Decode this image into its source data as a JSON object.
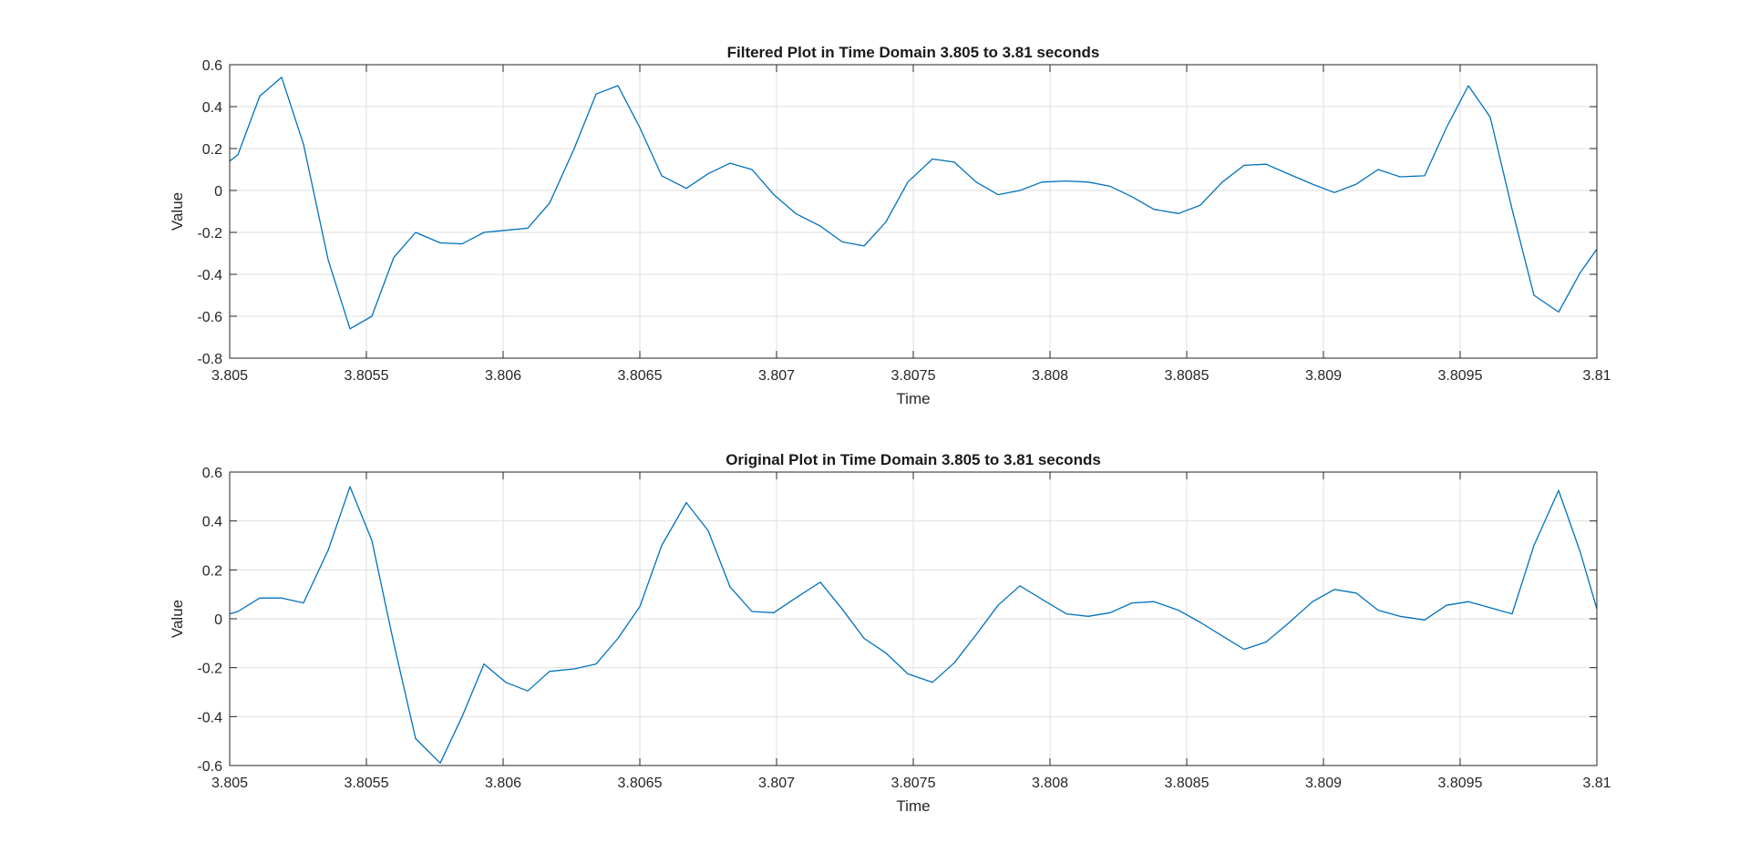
{
  "chart_data": [
    {
      "type": "line",
      "title": "Filtered Plot in Time Domain 3.805 to 3.81 seconds",
      "xlabel": "Time",
      "ylabel": "Value",
      "xlim": [
        3.805,
        3.81
      ],
      "ylim": [
        -0.8,
        0.6
      ],
      "xticks": [
        3.805,
        3.8055,
        3.806,
        3.8065,
        3.807,
        3.8075,
        3.808,
        3.8085,
        3.809,
        3.8095,
        3.81
      ],
      "xtick_labels": [
        "3.805",
        "3.8055",
        "3.806",
        "3.8065",
        "3.807",
        "3.8075",
        "3.808",
        "3.8085",
        "3.809",
        "3.8095",
        "3.81"
      ],
      "yticks": [
        -0.8,
        -0.6,
        -0.4,
        -0.2,
        0,
        0.2,
        0.4,
        0.6
      ],
      "ytick_labels": [
        "-0.8",
        "-0.6",
        "-0.4",
        "-0.2",
        "0",
        "0.2",
        "0.4",
        "0.6"
      ],
      "grid": true,
      "color": "#0072BD",
      "x": [
        3.805,
        3.80503,
        3.80511,
        3.80519,
        3.80527,
        3.80536,
        3.80544,
        3.80552,
        3.8056,
        3.80568,
        3.80577,
        3.80585,
        3.80593,
        3.80601,
        3.80609,
        3.80617,
        3.80626,
        3.80634,
        3.80642,
        3.8065,
        3.80658,
        3.80667,
        3.80675,
        3.80683,
        3.80691,
        3.80699,
        3.80707,
        3.80716,
        3.80724,
        3.80732,
        3.8074,
        3.80748,
        3.80757,
        3.80765,
        3.80773,
        3.80781,
        3.80789,
        3.80797,
        3.80806,
        3.80814,
        3.80822,
        3.8083,
        3.80838,
        3.80847,
        3.80855,
        3.80863,
        3.80871,
        3.80879,
        3.80887,
        3.80896,
        3.80904,
        3.80912,
        3.8092,
        3.80928,
        3.80937,
        3.80945,
        3.80953,
        3.80961,
        3.80969,
        3.80977,
        3.80986,
        3.80994,
        3.81
      ],
      "y": [
        0.14,
        0.17,
        0.45,
        0.54,
        0.22,
        -0.33,
        -0.66,
        -0.6,
        -0.32,
        -0.2,
        -0.25,
        -0.255,
        -0.2,
        -0.19,
        -0.18,
        -0.06,
        0.2,
        0.46,
        0.5,
        0.3,
        0.07,
        0.01,
        0.08,
        0.13,
        0.1,
        -0.02,
        -0.11,
        -0.17,
        -0.245,
        -0.265,
        -0.15,
        0.04,
        0.15,
        0.135,
        0.04,
        -0.02,
        0.0,
        0.04,
        0.045,
        0.04,
        0.02,
        -0.03,
        -0.09,
        -0.11,
        -0.07,
        0.04,
        0.12,
        0.125,
        0.08,
        0.03,
        -0.01,
        0.03,
        0.1,
        0.065,
        0.07,
        0.3,
        0.5,
        0.35,
        -0.09,
        -0.5,
        -0.58,
        -0.39,
        -0.28
      ]
    },
    {
      "type": "line",
      "title": "Original Plot in Time Domain 3.805 to 3.81 seconds",
      "xlabel": "Time",
      "ylabel": "Value",
      "xlim": [
        3.805,
        3.81
      ],
      "ylim": [
        -0.6,
        0.6
      ],
      "xticks": [
        3.805,
        3.8055,
        3.806,
        3.8065,
        3.807,
        3.8075,
        3.808,
        3.8085,
        3.809,
        3.8095,
        3.81
      ],
      "xtick_labels": [
        "3.805",
        "3.8055",
        "3.806",
        "3.8065",
        "3.807",
        "3.8075",
        "3.808",
        "3.8085",
        "3.809",
        "3.8095",
        "3.81"
      ],
      "yticks": [
        -0.6,
        -0.4,
        -0.2,
        0,
        0.2,
        0.4,
        0.6
      ],
      "ytick_labels": [
        "-0.6",
        "-0.4",
        "-0.2",
        "0",
        "0.2",
        "0.4",
        "0.6"
      ],
      "grid": true,
      "color": "#0072BD",
      "x": [
        3.805,
        3.80503,
        3.80511,
        3.80519,
        3.80527,
        3.80536,
        3.80544,
        3.80552,
        3.8056,
        3.80568,
        3.80577,
        3.80585,
        3.80593,
        3.80601,
        3.80609,
        3.80617,
        3.80626,
        3.80634,
        3.80642,
        3.8065,
        3.80658,
        3.80667,
        3.80675,
        3.80683,
        3.80691,
        3.80699,
        3.80707,
        3.80716,
        3.80724,
        3.80732,
        3.8074,
        3.80748,
        3.80757,
        3.80765,
        3.80773,
        3.80781,
        3.80789,
        3.80797,
        3.80806,
        3.80814,
        3.80822,
        3.8083,
        3.80838,
        3.80847,
        3.80855,
        3.80863,
        3.80871,
        3.80879,
        3.80887,
        3.80896,
        3.80904,
        3.80912,
        3.8092,
        3.80928,
        3.80937,
        3.80945,
        3.80953,
        3.80961,
        3.80969,
        3.80977,
        3.80986,
        3.80994,
        3.81
      ],
      "y": [
        0.02,
        0.03,
        0.085,
        0.085,
        0.065,
        0.28,
        0.54,
        0.32,
        -0.1,
        -0.49,
        -0.59,
        -0.4,
        -0.185,
        -0.26,
        -0.295,
        -0.215,
        -0.205,
        -0.185,
        -0.08,
        0.05,
        0.3,
        0.475,
        0.36,
        0.13,
        0.03,
        0.025,
        0.085,
        0.15,
        0.04,
        -0.08,
        -0.14,
        -0.225,
        -0.26,
        -0.18,
        -0.065,
        0.055,
        0.135,
        0.08,
        0.02,
        0.01,
        0.025,
        0.065,
        0.07,
        0.035,
        -0.015,
        -0.07,
        -0.125,
        -0.095,
        -0.02,
        0.07,
        0.12,
        0.105,
        0.035,
        0.01,
        -0.005,
        0.055,
        0.07,
        0.045,
        0.02,
        0.3,
        0.525,
        0.27,
        0.04
      ]
    }
  ]
}
